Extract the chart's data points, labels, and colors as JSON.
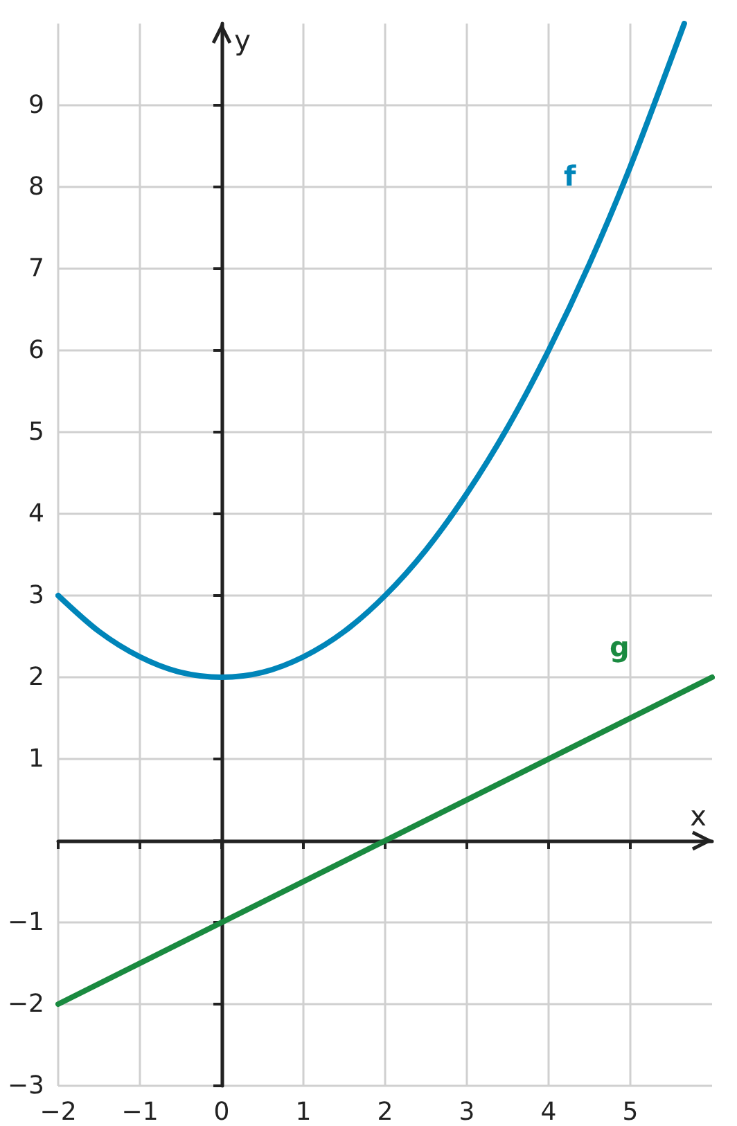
{
  "chart_data": {
    "type": "line",
    "xlabel": "x",
    "ylabel": "y",
    "xlim": [
      -2,
      6
    ],
    "ylim": [
      -3,
      10
    ],
    "xticks": [
      -2,
      -1,
      0,
      1,
      2,
      3,
      4,
      5
    ],
    "yticks": [
      -3,
      -2,
      -1,
      {
        "value": 0,
        "label": null
      },
      1,
      2,
      3,
      4,
      5,
      6,
      7,
      8,
      9
    ],
    "grid": true,
    "marker": "none",
    "line_style": "solid",
    "series": [
      {
        "name": "f",
        "color": "#0085b9",
        "x": [
          -2,
          -1.5,
          -1,
          -0.5,
          0,
          0.5,
          1,
          1.5,
          2,
          2.5,
          3,
          3.5,
          4,
          4.5,
          5,
          5.66
        ],
        "values": [
          3,
          2.56,
          2.25,
          2.06,
          2,
          2.06,
          2.25,
          2.56,
          3,
          3.56,
          4.25,
          5.06,
          6,
          7.06,
          8.25,
          10
        ]
      },
      {
        "name": "g",
        "color": "#1a8a40",
        "x": [
          -2,
          6
        ],
        "values": [
          -2,
          2
        ]
      }
    ]
  }
}
